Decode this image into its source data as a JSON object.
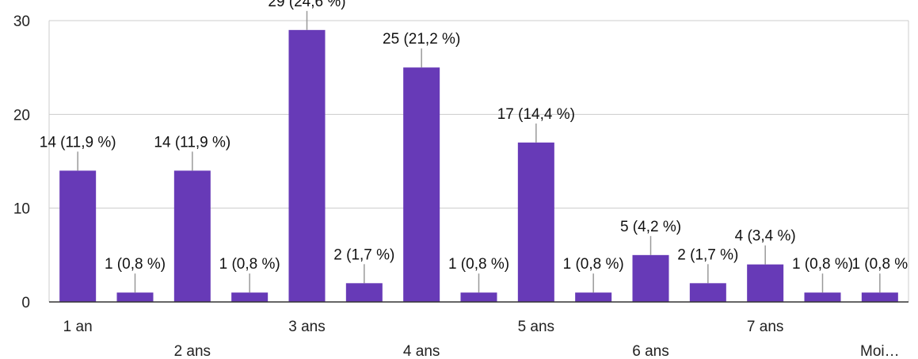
{
  "chart_data": {
    "type": "bar",
    "categories": [
      "1 an",
      "",
      "2 ans",
      "",
      "3 ans",
      "",
      "4 ans",
      "",
      "5 ans",
      "",
      "6 ans",
      "",
      "7 ans",
      "",
      "Moi…"
    ],
    "values": [
      14,
      1,
      14,
      1,
      29,
      2,
      25,
      1,
      17,
      1,
      5,
      2,
      4,
      1,
      1
    ],
    "data_labels": [
      "14 (11,9 %)",
      "1 (0,8 %)",
      "14 (11,9 %)",
      "1 (0,8 %)",
      "29 (24,6 %)",
      "2 (1,7 %)",
      "25 (21,2 %)",
      "1 (0,8 %)",
      "17 (14,4 %)",
      "1 (0,8 %)",
      "5 (4,2 %)",
      "2 (1,7 %)",
      "4 (3,4 %)",
      "1 (0,8 %)",
      "1 (0,8 %"
    ],
    "x_tick_labels": [
      {
        "text": "1 an",
        "index": 0,
        "row": 1
      },
      {
        "text": "2 ans",
        "index": 2,
        "row": 2
      },
      {
        "text": "3 ans",
        "index": 4,
        "row": 1
      },
      {
        "text": "4 ans",
        "index": 6,
        "row": 2
      },
      {
        "text": "5 ans",
        "index": 8,
        "row": 1
      },
      {
        "text": "6 ans",
        "index": 10,
        "row": 2
      },
      {
        "text": "7 ans",
        "index": 12,
        "row": 1
      },
      {
        "text": "Moi…",
        "index": 14,
        "row": 2
      }
    ],
    "y_ticks": [
      0,
      10,
      20,
      30
    ],
    "ylim": [
      0,
      30
    ],
    "title": "",
    "xlabel": "",
    "ylabel": "",
    "grid": true,
    "legend": "none",
    "bar_color": "#673AB7",
    "grid_color": "#CCCCCC",
    "axis_color": "#333333",
    "leader_color": "#999999"
  }
}
